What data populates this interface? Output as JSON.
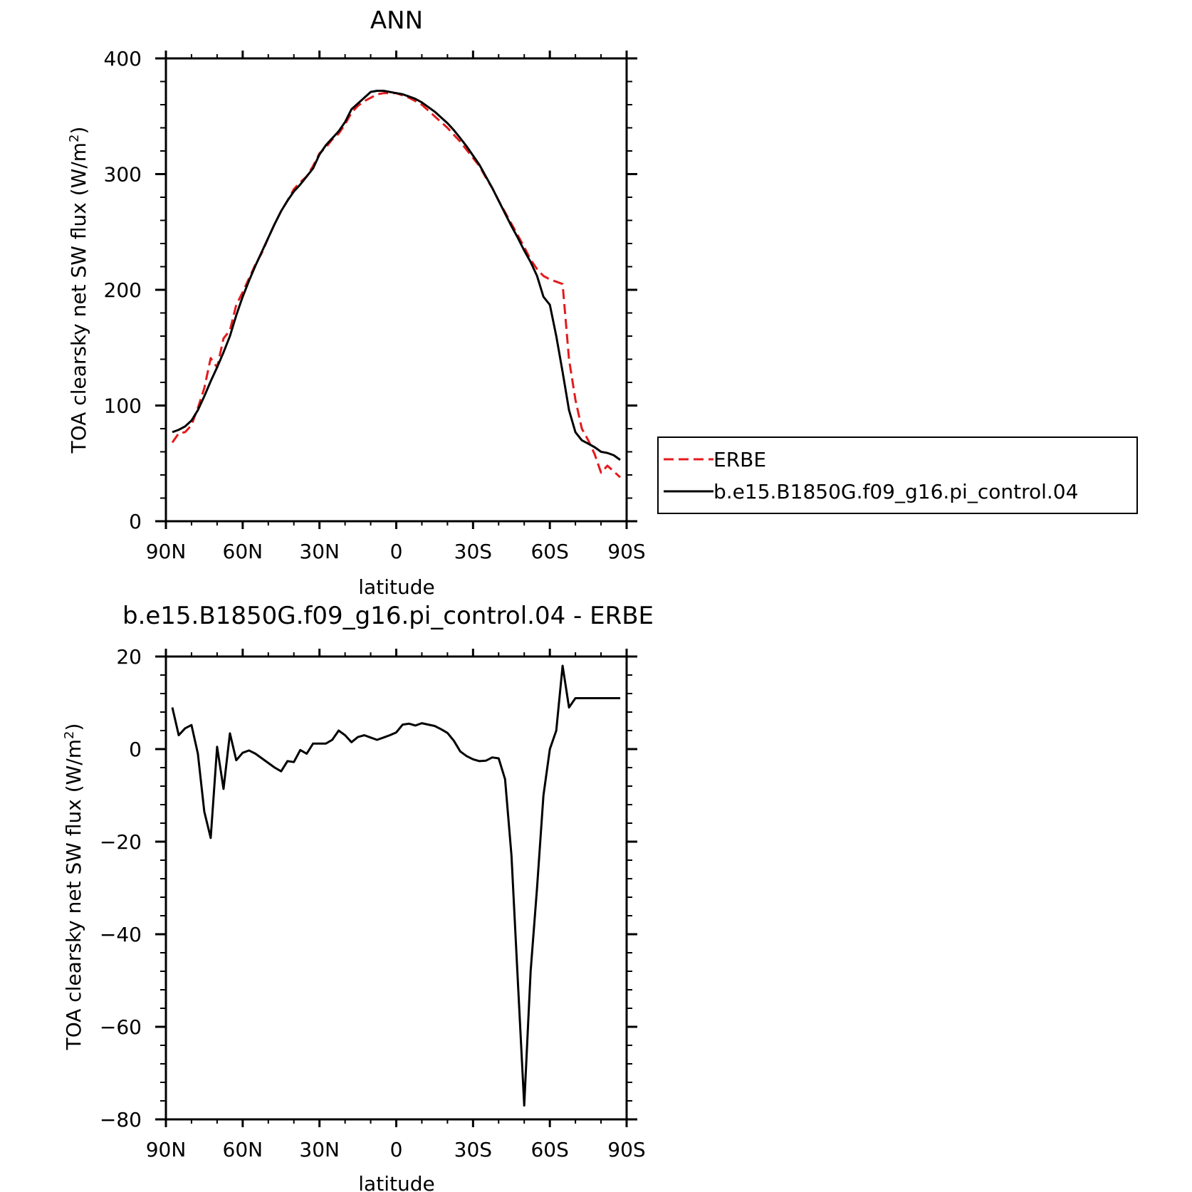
{
  "chart_data": [
    {
      "type": "line",
      "title": "ANN",
      "xlabel": "latitude",
      "ylabel": "TOA clearsky net SW flux (W/m",
      "ylabel_sup": "2",
      "ylabel_tail": ")",
      "xlim": [
        90,
        -90
      ],
      "ylim": [
        0,
        400
      ],
      "x_ticks": [
        {
          "value": 90,
          "label": "90N"
        },
        {
          "value": 60,
          "label": "60N"
        },
        {
          "value": 30,
          "label": "30N"
        },
        {
          "value": 0,
          "label": "0"
        },
        {
          "value": -30,
          "label": "30S"
        },
        {
          "value": -60,
          "label": "60S"
        },
        {
          "value": -90,
          "label": "90S"
        }
      ],
      "y_ticks": [
        {
          "value": 0,
          "label": "0"
        },
        {
          "value": 100,
          "label": "100"
        },
        {
          "value": 200,
          "label": "200"
        },
        {
          "value": 300,
          "label": "300"
        },
        {
          "value": 400,
          "label": "400"
        }
      ],
      "legend_position": "right",
      "series": [
        {
          "name": "ERBE",
          "color": "#e41a1c",
          "dash": "dashed",
          "x": [
            87.5,
            85,
            82.5,
            80,
            77.5,
            75,
            72.5,
            70,
            67.5,
            65,
            62.5,
            60,
            57.5,
            55,
            52.5,
            50,
            47.5,
            45,
            42.5,
            40,
            37.5,
            35,
            32.5,
            30,
            27.5,
            25,
            22.5,
            20,
            17.5,
            15,
            12.5,
            10,
            7.5,
            5,
            2.5,
            0,
            -2.5,
            -5,
            -7.5,
            -10,
            -12.5,
            -15,
            -17.5,
            -20,
            -22.5,
            -25,
            -27.5,
            -30,
            -32.5,
            -35,
            -37.5,
            -40,
            -42.5,
            -45,
            -47.5,
            -50,
            -52.5,
            -55,
            -57.5,
            -60,
            -62.5,
            -65,
            -67.5,
            -70,
            -72.5,
            -75,
            -77.5,
            -80,
            -82.5,
            -85,
            -87.5
          ],
          "values": [
            68,
            76,
            77,
            83,
            98,
            115,
            141,
            133,
            158,
            165,
            187,
            198,
            210,
            222,
            232,
            245,
            257,
            268,
            277,
            287,
            293,
            298,
            307,
            318,
            323,
            330,
            335,
            343,
            353,
            359,
            363,
            366,
            369,
            370,
            370,
            370,
            368,
            366,
            363,
            360,
            355,
            350,
            345,
            340,
            334,
            328,
            321,
            314,
            307,
            297,
            288,
            277,
            267,
            257,
            247,
            237,
            226,
            218,
            212,
            209,
            207,
            205,
            140,
            105,
            80,
            70,
            58,
            42,
            48,
            43,
            38
          ],
          "name_label": "ERBE"
        },
        {
          "name": "b.e15.B1850G.f09_g16.pi_control.04",
          "color": "#000000",
          "dash": "solid",
          "x": [
            87.5,
            85,
            82.5,
            80,
            77.5,
            75,
            72.5,
            70,
            67.5,
            65,
            62.5,
            60,
            57.5,
            55,
            52.5,
            50,
            47.5,
            45,
            42.5,
            40,
            37.5,
            35,
            32.5,
            30,
            27.5,
            25,
            22.5,
            20,
            17.5,
            15,
            12.5,
            10,
            7.5,
            5,
            2.5,
            0,
            -2.5,
            -5,
            -7.5,
            -10,
            -12.5,
            -15,
            -17.5,
            -20,
            -22.5,
            -25,
            -27.5,
            -30,
            -32.5,
            -35,
            -37.5,
            -40,
            -42.5,
            -45,
            -47.5,
            -50,
            -52.5,
            -55,
            -57.5,
            -60,
            -62.5,
            -65,
            -67.5,
            -70,
            -72.5,
            -75,
            -77.5,
            -80,
            -82.5,
            -85,
            -87.5
          ],
          "values": [
            77,
            79,
            82,
            87,
            96,
            108,
            121,
            133,
            146,
            160,
            178,
            194,
            208,
            221,
            233,
            245,
            257,
            268,
            277,
            285,
            291,
            298,
            305,
            317,
            325,
            331,
            337,
            345,
            356,
            361,
            366,
            371,
            372,
            372,
            371,
            370,
            369,
            367,
            365,
            362,
            358,
            354,
            349,
            344,
            338,
            331,
            324,
            316,
            308,
            298,
            288,
            277,
            266,
            255,
            245,
            234,
            224,
            212,
            194,
            187,
            160,
            129,
            96,
            77,
            70,
            67,
            64,
            60,
            59,
            57,
            53
          ]
        }
      ]
    },
    {
      "type": "line",
      "title": "b.e15.B1850G.f09_g16.pi_control.04 - ERBE",
      "xlabel": "latitude",
      "ylabel": "TOA clearsky net SW flux (W/m",
      "ylabel_sup": "2",
      "ylabel_tail": ")",
      "xlim": [
        90,
        -90
      ],
      "ylim": [
        -80,
        20
      ],
      "x_ticks": [
        {
          "value": 90,
          "label": "90N"
        },
        {
          "value": 60,
          "label": "60N"
        },
        {
          "value": 30,
          "label": "30N"
        },
        {
          "value": 0,
          "label": "0"
        },
        {
          "value": -30,
          "label": "30S"
        },
        {
          "value": -60,
          "label": "60S"
        },
        {
          "value": -90,
          "label": "90S"
        }
      ],
      "y_ticks": [
        {
          "value": -80,
          "label": "−80"
        },
        {
          "value": -60,
          "label": "−60"
        },
        {
          "value": -40,
          "label": "−40"
        },
        {
          "value": -20,
          "label": "−20"
        },
        {
          "value": 0,
          "label": "0"
        },
        {
          "value": 20,
          "label": "20"
        }
      ],
      "series": [
        {
          "name": "",
          "color": "#000000",
          "dash": "solid",
          "x": [
            87.5,
            85,
            82.5,
            80,
            77.5,
            75,
            72.5,
            70,
            67.5,
            65,
            62.5,
            60,
            57.5,
            55,
            52.5,
            50,
            47.5,
            45,
            42.5,
            40,
            37.5,
            35,
            32.5,
            30,
            27.5,
            25,
            22.5,
            20,
            17.5,
            15,
            12.5,
            10,
            7.5,
            5,
            2.5,
            0,
            -2.5,
            -5,
            -7.5,
            -10,
            -12.5,
            -15,
            -17.5,
            -20,
            -22.5,
            -25,
            -27.5,
            -30,
            -32.5,
            -35,
            -37.5,
            -40,
            -42.5,
            -45,
            -47.5,
            -50,
            -52.5,
            -55,
            -57.5,
            -60,
            -62.5,
            -65,
            -67.5,
            -70,
            -72.5,
            -75,
            -77.5,
            -80,
            -82.5,
            -85,
            -87.5
          ],
          "values": [
            9,
            3,
            4.5,
            5.2,
            -1,
            -13.5,
            -19.2,
            0.5,
            -8.6,
            3.4,
            -2.4,
            -0.8,
            -0.3,
            -1,
            -2,
            -3,
            -4,
            -4.8,
            -2.6,
            -2.8,
            -0.2,
            -1,
            1.2,
            1.2,
            1.2,
            2,
            4,
            3,
            1.5,
            2.6,
            3,
            2.5,
            2,
            2.5,
            3,
            3.6,
            5.3,
            5.5,
            5.1,
            5.6,
            5.3,
            5,
            4.3,
            3.5,
            1.8,
            -0.5,
            -1.5,
            -2.2,
            -2.6,
            -2.5,
            -1.8,
            -2,
            -6.5,
            -23,
            -50,
            -77,
            -48,
            -30,
            -10,
            0,
            4,
            18,
            9,
            11,
            11,
            11,
            11,
            11,
            11,
            11,
            11
          ]
        }
      ]
    }
  ],
  "legend": {
    "items": [
      {
        "label": "ERBE",
        "color": "#e41a1c",
        "dash": "dashed"
      },
      {
        "label": "b.e15.B1850G.f09_g16.pi_control.04",
        "color": "#000000",
        "dash": "solid"
      }
    ]
  }
}
